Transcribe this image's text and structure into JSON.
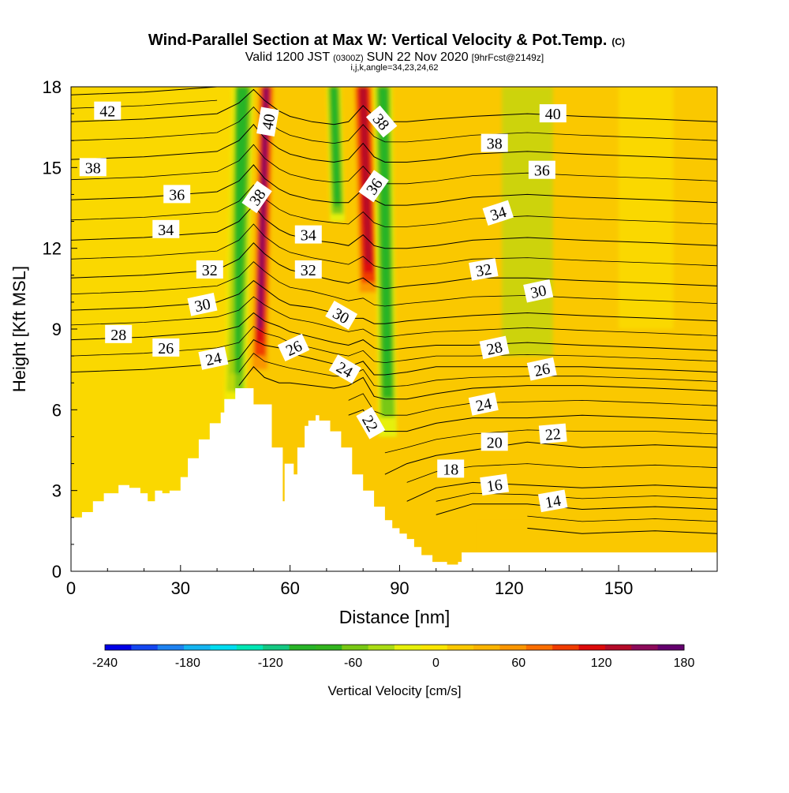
{
  "chart_data": {
    "type": "heatmap",
    "title": "Wind-Parallel Section at Max W: Vertical Velocity & Pot.Temp.",
    "title_mark": "(C)",
    "subtitle": {
      "part1": "Valid 1200 JST",
      "part2": "(0300Z)",
      "part3": "SUN 22 Nov 2020",
      "part4": "[9hrFcst@2149z]"
    },
    "subtitle2": "i,j,k,angle=34,23,24,62",
    "xlabel": "Distance [nm]",
    "ylabel": "Height [Kft MSL]",
    "xlim": [
      0,
      177
    ],
    "ylim": [
      0,
      18
    ],
    "x_ticks": [
      0,
      30,
      60,
      90,
      120,
      150
    ],
    "y_ticks": [
      0,
      3,
      6,
      9,
      12,
      15,
      18
    ],
    "grid": false,
    "colorbar": {
      "label": "Vertical Velocity [cm/s]",
      "min": -240,
      "max": 180,
      "step": 20,
      "tick_values": [
        -240,
        -180,
        -120,
        -60,
        0,
        60,
        120,
        180
      ],
      "colors": [
        "#0000e6",
        "#1446f0",
        "#1e82f0",
        "#14b4f0",
        "#00dcf0",
        "#00e6b4",
        "#14c882",
        "#28b428",
        "#32b41e",
        "#78c814",
        "#aadc14",
        "#e6f00a",
        "#fae600",
        "#fac800",
        "#fab400",
        "#fa9600",
        "#fa6e00",
        "#f03c00",
        "#dc0a0a",
        "#b40a28",
        "#8c0a5a",
        "#64006e"
      ]
    },
    "vertical_velocity_features": [
      {
        "kind": "updraft",
        "x_range": [
          51,
          56
        ],
        "y_range": [
          7,
          18
        ],
        "peak_cm_s": 160
      },
      {
        "kind": "updraft",
        "x_range": [
          77,
          83
        ],
        "y_range": [
          10,
          18
        ],
        "peak_cm_s": 140
      },
      {
        "kind": "downdraft",
        "x_range": [
          44,
          50
        ],
        "y_range": [
          6,
          18
        ],
        "peak_cm_s": -100
      },
      {
        "kind": "downdraft",
        "x_range": [
          83,
          88
        ],
        "y_range": [
          5,
          18
        ],
        "peak_cm_s": -100
      },
      {
        "kind": "downdraft",
        "x_range": [
          70,
          74
        ],
        "y_range": [
          13,
          18
        ],
        "peak_cm_s": -100
      }
    ],
    "terrain_profile": {
      "x": [
        0,
        3,
        3,
        6,
        6,
        9,
        9,
        13,
        13,
        16,
        16,
        19,
        19,
        21,
        21,
        23,
        23,
        25,
        25,
        27,
        27,
        30,
        30,
        32,
        32,
        35,
        35,
        38,
        38,
        41,
        41,
        42,
        42,
        45,
        45,
        50,
        50,
        55,
        55,
        58,
        58,
        58.5,
        58.5,
        61,
        61,
        62,
        62,
        64,
        64,
        65,
        65,
        67,
        67,
        68,
        68,
        71,
        71,
        74,
        74,
        77,
        77,
        80,
        80,
        83,
        83,
        86,
        86,
        88,
        88,
        90,
        90,
        92,
        92,
        94,
        94,
        96,
        96,
        99,
        99,
        101,
        101,
        103,
        103,
        106,
        106,
        107,
        107,
        140,
        140,
        177
      ],
      "y": [
        2.0,
        2.0,
        2.2,
        2.2,
        2.6,
        2.6,
        2.9,
        2.9,
        3.2,
        3.2,
        3.1,
        3.1,
        2.9,
        2.9,
        2.6,
        2.6,
        3.0,
        3.0,
        2.9,
        2.9,
        3.0,
        3.0,
        3.5,
        3.5,
        4.2,
        4.2,
        4.9,
        4.9,
        5.5,
        5.5,
        5.9,
        5.9,
        6.4,
        6.4,
        6.8,
        6.8,
        6.2,
        6.2,
        4.6,
        4.6,
        2.6,
        2.6,
        4.0,
        4.0,
        3.6,
        3.6,
        4.6,
        4.6,
        5.4,
        5.4,
        5.6,
        5.6,
        5.8,
        5.8,
        5.6,
        5.6,
        5.2,
        5.2,
        4.6,
        4.6,
        3.6,
        3.6,
        3.0,
        3.0,
        2.4,
        2.4,
        1.9,
        1.9,
        1.6,
        1.6,
        1.4,
        1.4,
        1.2,
        1.2,
        0.9,
        0.9,
        0.6,
        0.6,
        0.35,
        0.35,
        0.35,
        0.35,
        0.25,
        0.25,
        0.35,
        0.35,
        0.7,
        0.7,
        0.7,
        0.7
      ]
    },
    "theta_contours_x_nodes": [
      0,
      20,
      40,
      46,
      50,
      53,
      57,
      60,
      66,
      72,
      76,
      80,
      83,
      86,
      92,
      100,
      110,
      125,
      140,
      160,
      177
    ],
    "theta_contours": [
      {
        "theta": 14,
        "y": [
          null,
          null,
          null,
          null,
          null,
          null,
          null,
          null,
          null,
          null,
          null,
          null,
          null,
          null,
          null,
          null,
          null,
          1.6,
          1.4,
          1.5,
          1.4
        ]
      },
      {
        "theta": 16,
        "y": [
          null,
          null,
          null,
          null,
          null,
          null,
          null,
          null,
          null,
          null,
          null,
          null,
          null,
          null,
          null,
          2.1,
          2.5,
          2.5,
          2.3,
          2.4,
          2.3
        ]
      },
      {
        "theta": 18,
        "y": [
          null,
          null,
          null,
          null,
          null,
          null,
          null,
          null,
          null,
          null,
          null,
          null,
          null,
          null,
          2.6,
          3.1,
          3.3,
          3.2,
          3.1,
          3.2,
          3.1
        ]
      },
      {
        "theta": 20,
        "y": [
          null,
          null,
          null,
          null,
          null,
          null,
          null,
          null,
          null,
          null,
          null,
          null,
          null,
          3.6,
          4.0,
          4.3,
          4.5,
          4.8,
          4.6,
          4.7,
          4.6
        ]
      },
      {
        "theta": 22,
        "y": [
          null,
          null,
          null,
          null,
          null,
          null,
          null,
          null,
          null,
          null,
          5.8,
          6.0,
          5.4,
          5.2,
          5.2,
          5.5,
          5.7,
          5.7,
          5.8,
          5.7,
          5.6
        ]
      },
      {
        "theta": 24,
        "y": [
          null,
          null,
          null,
          6.9,
          7.6,
          7.2,
          7.0,
          7.0,
          6.9,
          6.8,
          6.9,
          7.2,
          6.5,
          6.4,
          6.4,
          6.6,
          6.8,
          6.9,
          6.9,
          6.8,
          6.7
        ]
      },
      {
        "theta": 26,
        "y": [
          7.4,
          7.5,
          7.7,
          7.9,
          8.6,
          8.4,
          8.3,
          8.1,
          7.9,
          7.7,
          7.6,
          7.8,
          7.3,
          7.3,
          7.4,
          7.6,
          7.6,
          7.6,
          7.6,
          7.5,
          7.4
        ]
      },
      {
        "theta": 28,
        "y": [
          8.6,
          8.7,
          8.9,
          9.1,
          9.6,
          9.3,
          9.1,
          8.9,
          8.7,
          8.5,
          8.4,
          8.6,
          8.3,
          8.2,
          8.3,
          8.4,
          8.4,
          8.5,
          8.4,
          8.3,
          8.2
        ]
      },
      {
        "theta": 30,
        "y": [
          9.7,
          9.8,
          10.0,
          10.3,
          10.8,
          10.5,
          10.1,
          9.9,
          9.8,
          9.6,
          9.4,
          9.4,
          9.2,
          9.2,
          9.3,
          9.4,
          9.5,
          9.6,
          9.5,
          9.4,
          9.3
        ]
      },
      {
        "theta": 32,
        "y": [
          10.9,
          11.0,
          11.2,
          11.6,
          12.2,
          11.8,
          11.4,
          11.2,
          11.0,
          10.8,
          10.7,
          10.9,
          10.6,
          10.5,
          10.6,
          10.7,
          10.9,
          10.9,
          10.8,
          10.7,
          10.6
        ]
      },
      {
        "theta": 34,
        "y": [
          12.3,
          12.4,
          12.6,
          13.0,
          13.6,
          13.1,
          12.7,
          12.5,
          12.3,
          12.2,
          12.1,
          12.5,
          12.1,
          12.0,
          12.0,
          12.1,
          12.3,
          12.4,
          12.3,
          12.2,
          12.1
        ]
      },
      {
        "theta": 36,
        "y": [
          13.8,
          13.9,
          14.1,
          14.5,
          15.1,
          14.6,
          14.2,
          14.0,
          13.8,
          13.7,
          13.7,
          14.2,
          13.8,
          13.6,
          13.6,
          13.7,
          13.9,
          14.0,
          13.9,
          13.8,
          13.7
        ]
      },
      {
        "theta": 38,
        "y": [
          15.3,
          15.4,
          15.6,
          16.0,
          16.6,
          16.1,
          15.7,
          15.5,
          15.3,
          15.2,
          15.3,
          15.9,
          15.4,
          15.2,
          15.2,
          15.3,
          15.5,
          15.6,
          15.5,
          15.4,
          15.3
        ]
      },
      {
        "theta": 40,
        "y": [
          16.7,
          16.8,
          17.0,
          17.4,
          17.9,
          17.5,
          17.1,
          16.9,
          16.7,
          16.6,
          16.7,
          17.3,
          16.9,
          16.7,
          16.7,
          16.8,
          16.9,
          17.0,
          16.9,
          16.8,
          16.7
        ]
      },
      {
        "theta": 42,
        "y": [
          17.7,
          17.8,
          18.0,
          null,
          null,
          null,
          null,
          null,
          null,
          null,
          null,
          null,
          null,
          null,
          null,
          null,
          null,
          null,
          null,
          null,
          null
        ]
      }
    ],
    "contour_labels": [
      {
        "text": "42",
        "x": 10,
        "y": 17.1,
        "angle": 0
      },
      {
        "text": "38",
        "x": 6,
        "y": 15.0,
        "angle": 0
      },
      {
        "text": "36",
        "x": 29,
        "y": 14.0,
        "angle": 0
      },
      {
        "text": "34",
        "x": 26,
        "y": 12.7,
        "angle": 0
      },
      {
        "text": "32",
        "x": 38,
        "y": 11.2,
        "angle": 0
      },
      {
        "text": "30",
        "x": 36,
        "y": 9.9,
        "angle": -12
      },
      {
        "text": "28",
        "x": 13,
        "y": 8.8,
        "angle": 0
      },
      {
        "text": "26",
        "x": 26,
        "y": 8.3,
        "angle": 0
      },
      {
        "text": "24",
        "x": 39,
        "y": 7.9,
        "angle": -12
      },
      {
        "text": "40",
        "x": 54,
        "y": 16.7,
        "angle": -80
      },
      {
        "text": "38",
        "x": 51,
        "y": 13.9,
        "angle": -55
      },
      {
        "text": "34",
        "x": 65,
        "y": 12.5,
        "angle": 0
      },
      {
        "text": "32",
        "x": 65,
        "y": 11.2,
        "angle": 0
      },
      {
        "text": "26",
        "x": 61,
        "y": 8.3,
        "angle": -25
      },
      {
        "text": "30",
        "x": 74,
        "y": 9.5,
        "angle": 30
      },
      {
        "text": "24",
        "x": 75,
        "y": 7.5,
        "angle": 30
      },
      {
        "text": "22",
        "x": 82,
        "y": 5.5,
        "angle": 60
      },
      {
        "text": "38",
        "x": 85,
        "y": 16.7,
        "angle": 50
      },
      {
        "text": "36",
        "x": 83,
        "y": 14.3,
        "angle": -55
      },
      {
        "text": "40",
        "x": 132,
        "y": 17.0,
        "angle": 0
      },
      {
        "text": "38",
        "x": 116,
        "y": 15.9,
        "angle": 0
      },
      {
        "text": "36",
        "x": 129,
        "y": 14.9,
        "angle": 0
      },
      {
        "text": "34",
        "x": 117,
        "y": 13.3,
        "angle": -18
      },
      {
        "text": "32",
        "x": 113,
        "y": 11.2,
        "angle": -10
      },
      {
        "text": "30",
        "x": 128,
        "y": 10.4,
        "angle": -12
      },
      {
        "text": "28",
        "x": 116,
        "y": 8.3,
        "angle": -12
      },
      {
        "text": "26",
        "x": 129,
        "y": 7.5,
        "angle": -12
      },
      {
        "text": "24",
        "x": 113,
        "y": 6.2,
        "angle": -12
      },
      {
        "text": "22",
        "x": 132,
        "y": 5.1,
        "angle": -5
      },
      {
        "text": "20",
        "x": 116,
        "y": 4.8,
        "angle": 0
      },
      {
        "text": "18",
        "x": 104,
        "y": 3.8,
        "angle": 0
      },
      {
        "text": "16",
        "x": 116,
        "y": 3.2,
        "angle": -8
      },
      {
        "text": "14",
        "x": 132,
        "y": 2.6,
        "angle": -10
      }
    ]
  }
}
